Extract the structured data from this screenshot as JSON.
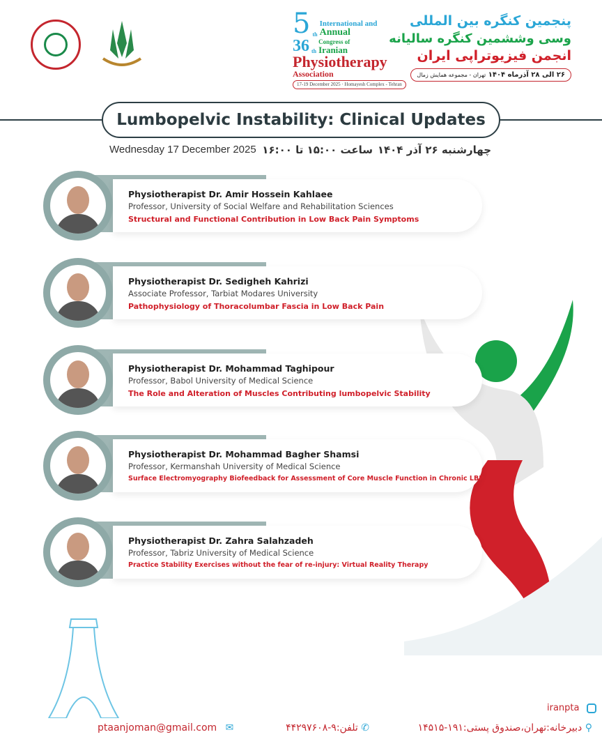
{
  "logos": {
    "left": "Iranian Physiotherapy Association",
    "middle": "University of Social Welfare and Rehabilitation Sciences"
  },
  "congress": {
    "number": "5",
    "suffix_th": "th",
    "annual_number": "36",
    "annual_suffix": "th",
    "line1": "International and",
    "line2": "Annual",
    "line3": "Congress of",
    "line4": "Iranian",
    "line5": "Physiotherapy",
    "line6": "Association",
    "dates_venue": "17-19 December 2025 · Homayesh Complex - Tehran"
  },
  "fa_title": {
    "line1": "پنجمین کنگره بین المللی",
    "line2": "وسی وششمین کنگره سالیانه",
    "line3": "انجمن فیزیوتراپی ایران",
    "dates": "۲۶ الی ۲۸ آذرماه ۱۴۰۴",
    "venue": "تهران - مجموعه همایش زمال"
  },
  "colors": {
    "blue": "#2aa6d6",
    "green": "#1aa34a",
    "red": "#d0202a",
    "ring": "#8ea9a7",
    "dark": "#2c3b40"
  },
  "session": {
    "title": "Lumbopelvic Instability: Clinical Updates",
    "date_en": "Wednesday 17 December 2025",
    "time_fa": "ساعت ۱۵:۰۰ تا ۱۶:۰۰",
    "date_fa": "چهارشنبه ۲۶ آذر ۱۴۰۴"
  },
  "speakers": [
    {
      "name": "Physiotherapist  Dr. Amir Hossein Kahlaee",
      "affiliation": "Professor, University of Social Welfare and Rehabilitation Sciences",
      "topic": "Structural and Functional Contribution in Low Back Pain Symptoms"
    },
    {
      "name": "Physiotherapist  Dr. Sedigheh Kahrizi",
      "affiliation": "Associate Professor, Tarbiat Modares University",
      "topic": "Pathophysiology  of Thoracolumbar Fascia in Low Back Pain"
    },
    {
      "name": "Physiotherapist  Dr. Mohammad Taghipour",
      "affiliation": "Professor, Babol University of Medical Science",
      "topic": "The Role and Alteration of Muscles Contributing lumbopelvic Stability"
    },
    {
      "name": "Physiotherapist  Dr. Mohammad Bagher Shamsi",
      "affiliation": "Professor, Kermanshah University of Medical Science",
      "topic": "Surface Electromyography Biofeedback for Assessment of Core Muscle Function in Chronic LBP"
    },
    {
      "name": "Physiotherapist  Dr. Zahra Salahzadeh",
      "affiliation": "Professor, Tabriz University of Medical Science",
      "topic": "Practice Stability Exercises without the fear of re-injury: Virtual Reality Therapy"
    }
  ],
  "footer": {
    "instagram": "iranpta",
    "address": "دبیرخانه:تهران،صندوق پستی:۱۹۱-۱۴۵۱۵",
    "phone": "تلفن:۹-۴۴۲۹۷۶۰۸",
    "email": "ptaanjoman@gmail.com"
  }
}
